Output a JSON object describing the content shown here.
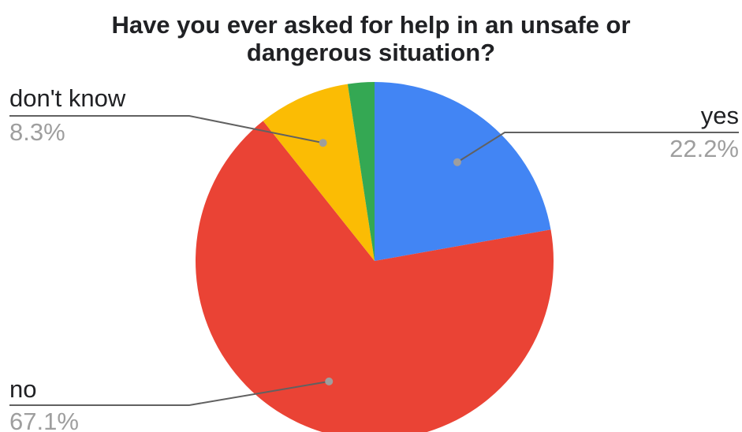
{
  "chart_data": {
    "type": "pie",
    "title": "Have you ever asked for help in an unsafe or\ndangerous situation?",
    "slices": [
      {
        "name": "yes",
        "value": 22.2,
        "label": "22.2%",
        "color": "#4285f4"
      },
      {
        "name": "no",
        "value": 67.1,
        "label": "67.1%",
        "color": "#ea4335"
      },
      {
        "name": "don't know",
        "value": 8.3,
        "label": "8.3%",
        "color": "#fbbc04"
      },
      {
        "value": 2.4,
        "color": "#34a853"
      }
    ],
    "start_angle_deg": 0,
    "direction": "clockwise",
    "legend": "none",
    "labels_position": "outside-with-leader-lines"
  }
}
